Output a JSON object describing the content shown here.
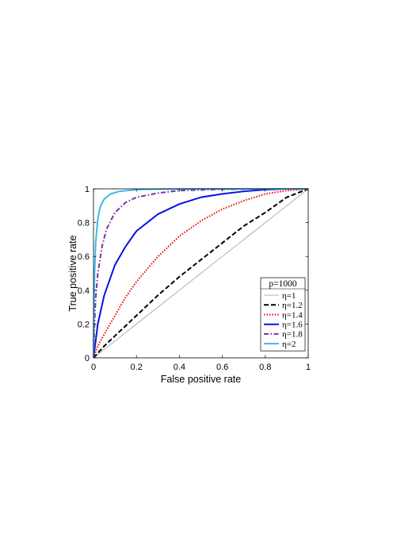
{
  "chart_data": {
    "type": "line",
    "title": "",
    "xlabel": "False positive rate",
    "ylabel": "True positive rate",
    "xlim": [
      0,
      1
    ],
    "ylim": [
      0,
      1
    ],
    "xticks": [
      0,
      0.2,
      0.4,
      0.6,
      0.8,
      1
    ],
    "yticks": [
      0,
      0.2,
      0.4,
      0.6,
      0.8,
      1
    ],
    "xtick_labels": [
      "0",
      "0.2",
      "0.4",
      "0.6",
      "0.8",
      "1"
    ],
    "ytick_labels": [
      "0",
      "0.2",
      "0.4",
      "0.6",
      "0.8",
      "1"
    ],
    "grid": false,
    "legend_placement": "bottom-right",
    "legend_title": "p=1000",
    "series": [
      {
        "name": "η=1",
        "color": "#a8a8a8",
        "style": "solid",
        "x": [
          0,
          0.1,
          0.2,
          0.3,
          0.4,
          0.5,
          0.6,
          0.7,
          0.8,
          0.9,
          1
        ],
        "y": [
          0,
          0.1,
          0.2,
          0.3,
          0.4,
          0.5,
          0.6,
          0.7,
          0.8,
          0.9,
          1
        ]
      },
      {
        "name": "η=1.2",
        "color": "#000000",
        "style": "dashed",
        "x": [
          0,
          0.05,
          0.1,
          0.2,
          0.3,
          0.4,
          0.5,
          0.6,
          0.7,
          0.8,
          0.9,
          1
        ],
        "y": [
          0,
          0.07,
          0.13,
          0.25,
          0.37,
          0.48,
          0.58,
          0.68,
          0.78,
          0.86,
          0.95,
          1
        ]
      },
      {
        "name": "η=1.4",
        "color": "#e8140c",
        "style": "dotted",
        "x": [
          0,
          0.02,
          0.05,
          0.1,
          0.15,
          0.2,
          0.3,
          0.4,
          0.5,
          0.6,
          0.7,
          0.8,
          0.9,
          1
        ],
        "y": [
          0,
          0.07,
          0.14,
          0.25,
          0.36,
          0.45,
          0.6,
          0.72,
          0.81,
          0.88,
          0.93,
          0.97,
          0.99,
          1
        ]
      },
      {
        "name": "η=1.6",
        "color": "#0a10e6",
        "style": "solid",
        "x": [
          0,
          0.01,
          0.02,
          0.05,
          0.1,
          0.15,
          0.2,
          0.3,
          0.4,
          0.5,
          0.6,
          0.7,
          0.8,
          0.9,
          1
        ],
        "y": [
          0,
          0.1,
          0.2,
          0.37,
          0.55,
          0.66,
          0.75,
          0.85,
          0.91,
          0.95,
          0.97,
          0.985,
          0.995,
          1,
          1
        ]
      },
      {
        "name": "η=1.8",
        "color": "#7a30a8",
        "style": "dashdot",
        "x": [
          0,
          0.005,
          0.01,
          0.02,
          0.04,
          0.06,
          0.1,
          0.15,
          0.2,
          0.3,
          0.4,
          0.6,
          0.8,
          1
        ],
        "y": [
          0,
          0.2,
          0.35,
          0.5,
          0.66,
          0.76,
          0.86,
          0.92,
          0.95,
          0.975,
          0.99,
          0.997,
          1,
          1
        ]
      },
      {
        "name": "η=2",
        "color": "#40b8e8",
        "style": "solid",
        "x": [
          0,
          0.002,
          0.005,
          0.01,
          0.02,
          0.03,
          0.05,
          0.08,
          0.12,
          0.2,
          0.3,
          0.5,
          1
        ],
        "y": [
          0,
          0.3,
          0.5,
          0.68,
          0.82,
          0.89,
          0.94,
          0.97,
          0.985,
          0.995,
          0.998,
          1,
          1
        ]
      }
    ]
  }
}
